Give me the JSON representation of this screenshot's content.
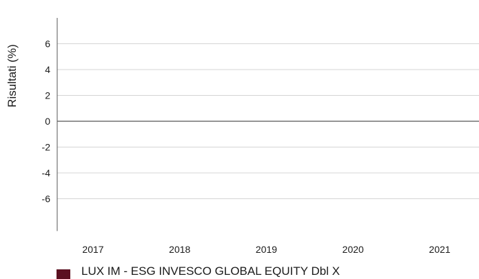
{
  "chart_data": {
    "type": "bar",
    "title": "",
    "xlabel": "",
    "ylabel": "Risultati (%)",
    "categories": [
      "2017",
      "2018",
      "2019",
      "2020",
      "2021"
    ],
    "series": [
      {
        "name": "LUX IM - ESG INVESCO GLOBAL EQUITY Dbl X",
        "values": [
          null,
          null,
          null,
          null,
          null
        ],
        "color": "#5b1020"
      }
    ],
    "yticks": [
      "6",
      "4",
      "2",
      "0",
      "-2",
      "-4",
      "-6"
    ],
    "ylim": [
      -8.5,
      8
    ],
    "grid": true,
    "legend_position": "bottom-left",
    "colors": {
      "grid": "#d4d4d4",
      "zero_line": "#555555",
      "axis": "#555555"
    }
  }
}
